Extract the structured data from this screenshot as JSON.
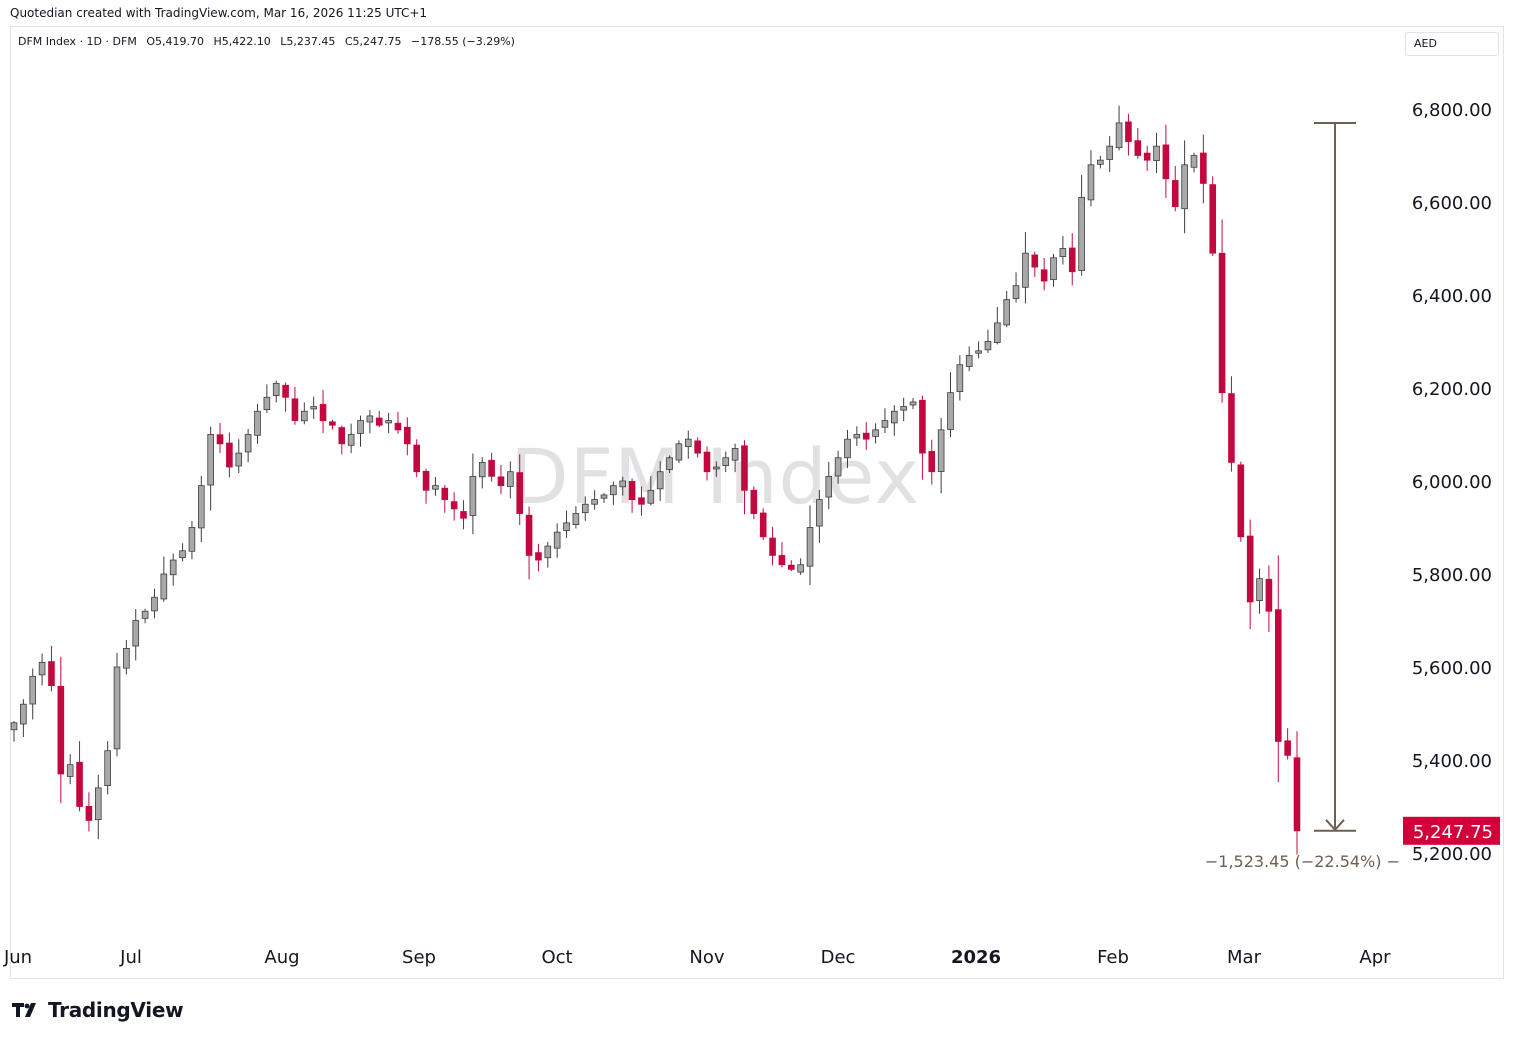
{
  "header": {
    "credit": "Quotedian created with TradingView.com, Mar 16, 2026 11:25 UTC+1"
  },
  "legend": {
    "symbol": "DFM Index · 1D · DFM",
    "open": "O5,419.70",
    "high": "H5,422.10",
    "low": "L5,237.45",
    "close": "C5,247.75",
    "change": "−178.55 (−3.29%)"
  },
  "currency": "AED",
  "watermark": "DFM Index",
  "footer": {
    "logo_text": "TradingView"
  },
  "colors": {
    "up_body": "#a9a9a9",
    "up_border": "#3d3d3d",
    "down": "#c2093f",
    "price_label_bg": "#d1003b",
    "measure": "#6e5f52"
  },
  "measure_label": "−1,523.45 (−22.54%) −",
  "chart_data": {
    "type": "candlestick",
    "title": "",
    "x_axis_labels": [
      "Jun",
      "Jul",
      "Aug",
      "Sep",
      "Oct",
      "Nov",
      "Dec",
      "2026",
      "Feb",
      "Mar",
      "Apr"
    ],
    "y_axis_ticks": [
      "6,800.00",
      "6,600.00",
      "6,400.00",
      "6,200.00",
      "6,000.00",
      "5,800.00",
      "5,600.00",
      "5,400.00",
      "5,200.00"
    ],
    "ylim": [
      5180,
      6800
    ],
    "last_price": "5,247.75",
    "measure": {
      "from": 6770,
      "to": 5247.75
    },
    "price_path": [
      5480,
      5520,
      5580,
      5610,
      5560,
      5370,
      5390,
      5300,
      5270,
      5340,
      5420,
      5600,
      5640,
      5700,
      5720,
      5750,
      5800,
      5830,
      5850,
      5900,
      5990,
      6100,
      6080,
      6030,
      6060,
      6100,
      6150,
      6180,
      6210,
      6180,
      6130,
      6150,
      6160,
      6130,
      6120,
      6080,
      6100,
      6130,
      6140,
      6120,
      6130,
      6110,
      6080,
      6020,
      5980,
      5990,
      5960,
      5940,
      5920,
      6010,
      6040,
      6010,
      5990,
      6020,
      5930,
      5840,
      5830,
      5860,
      5890,
      5910,
      5930,
      5950,
      5960,
      5970,
      5990,
      6000,
      5960,
      5950,
      5980,
      6020,
      6050,
      6080,
      6090,
      6060,
      6020,
      6030,
      6050,
      6070,
      5980,
      5930,
      5880,
      5840,
      5820,
      5810,
      5820,
      5900,
      5960,
      6010,
      6050,
      6090,
      6100,
      6090,
      6110,
      6130,
      6150,
      6160,
      6170,
      6060,
      6020,
      6110,
      6190,
      6250,
      6270,
      6280,
      6300,
      6340,
      6390,
      6420,
      6490,
      6460,
      6430,
      6480,
      6500,
      6450,
      6610,
      6680,
      6690,
      6720,
      6770,
      6730,
      6700,
      6690,
      6720,
      6650,
      6590,
      6680,
      6700,
      6640,
      6490,
      6190,
      6040,
      5880,
      5740,
      5790,
      5720,
      5440,
      5410,
      5247.75
    ]
  }
}
